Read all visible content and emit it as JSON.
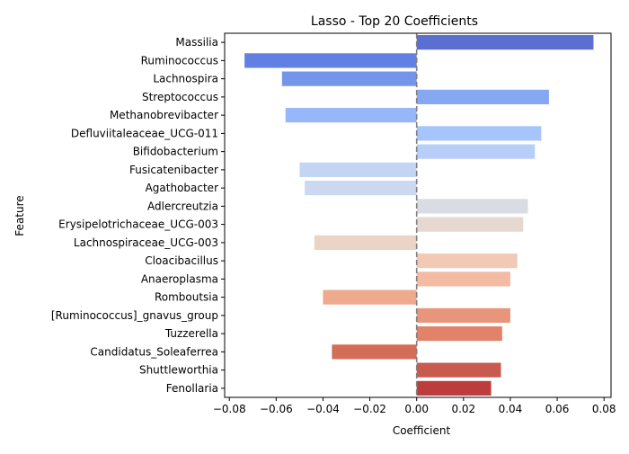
{
  "chart_data": {
    "type": "bar",
    "orientation": "horizontal",
    "title": "Lasso - Top 20 Coefficients",
    "xlabel": "Coefficient",
    "ylabel": "Feature",
    "xlim": [
      -0.082,
      0.083
    ],
    "xticks": [
      -0.08,
      -0.06,
      -0.04,
      -0.02,
      0.0,
      0.02,
      0.04,
      0.06,
      0.08
    ],
    "xtick_labels": [
      "−0.08",
      "−0.06",
      "−0.04",
      "−0.02",
      "0.00",
      "0.02",
      "0.04",
      "0.06",
      "0.08"
    ],
    "grid": false,
    "zero_line": {
      "value": 0,
      "style": "dashed",
      "color": "#808080"
    },
    "categories": [
      "Massilia",
      "Ruminococcus",
      "Lachnospira",
      "Streptococcus",
      "Methanobrevibacter",
      "Defluviitaleaceae_UCG-011",
      "Bifidobacterium",
      "Fusicatenibacter",
      "Agathobacter",
      "Adlercreutzia",
      "Erysipelotrichaceae_UCG-003",
      "Lachnospiraceae_UCG-003",
      "Cloacibacillus",
      "Anaeroplasma",
      "Romboutsia",
      "[Ruminococcus]_gnavus_group",
      "Tuzzerella",
      "Candidatus_Soleaferrea",
      "Shuttleworthia",
      "Fenollaria"
    ],
    "values": [
      0.0755,
      -0.0735,
      -0.0575,
      0.0565,
      -0.056,
      0.0532,
      0.0505,
      -0.05,
      -0.0478,
      0.0475,
      0.0455,
      -0.0437,
      0.043,
      0.04,
      -0.04,
      0.04,
      0.0365,
      -0.0362,
      0.036,
      0.0318
    ],
    "colors": [
      "#5a6fcf",
      "#6180e2",
      "#7595ea",
      "#86a8f3",
      "#97b7fa",
      "#a7c5fd",
      "#b7cff8",
      "#c4d5f3",
      "#ccd8ef",
      "#d9dce2",
      "#e5d8d1",
      "#ebd3c6",
      "#f2c9b4",
      "#f3bba2",
      "#eeaa8d",
      "#e7967b",
      "#e08369",
      "#d36d57",
      "#c85a4f",
      "#bd3d3d"
    ]
  }
}
